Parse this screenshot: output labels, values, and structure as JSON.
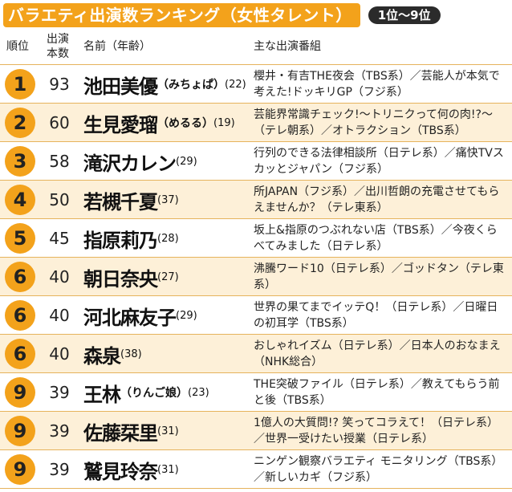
{
  "title": "バラエティ出演数ランキング（女性タレント）",
  "badge": "1位〜9位",
  "headers": {
    "rank": "順位",
    "count_line1": "出演",
    "count_line2": "本数",
    "name": "名前（年齢）",
    "programs": "主な出演番組"
  },
  "rows": [
    {
      "rank": "1",
      "count": "93",
      "name": "池田美優",
      "kana": "（みちょぱ）",
      "age": "(22)",
      "programs": "櫻井・有吉THE夜会（TBS系）／芸能人が本気で考えた!ドッキリGP（フジ系）"
    },
    {
      "rank": "2",
      "count": "60",
      "name": "生見愛瑠",
      "kana": "（めるる）",
      "age": "(19)",
      "programs": "芸能界常識チェック!〜トリニクって何の肉!?〜（テレ朝系）／オトラクション（TBS系）"
    },
    {
      "rank": "3",
      "count": "58",
      "name": "滝沢カレン",
      "kana": "",
      "age": "(29)",
      "programs": "行列のできる法律相談所（日テレ系）／痛快TVスカッとジャパン（フジ系）"
    },
    {
      "rank": "4",
      "count": "50",
      "name": "若槻千夏",
      "kana": "",
      "age": "(37)",
      "programs": "所JAPAN（フジ系）／出川哲朗の充電させてもらえませんか？（テレ東系）"
    },
    {
      "rank": "5",
      "count": "45",
      "name": "指原莉乃",
      "kana": "",
      "age": "(28)",
      "programs": "坂上&指原のつぶれない店（TBS系）／今夜くらべてみました（日テレ系）"
    },
    {
      "rank": "6",
      "count": "40",
      "name": "朝日奈央",
      "kana": "",
      "age": "(27)",
      "programs": "沸騰ワード10（日テレ系）／ゴッドタン（テレ東系）"
    },
    {
      "rank": "6",
      "count": "40",
      "name": "河北麻友子",
      "kana": "",
      "age": "(29)",
      "programs": "世界の果てまでイッテQ！（日テレ系）／日曜日の初耳学（TBS系）"
    },
    {
      "rank": "6",
      "count": "40",
      "name": "森泉",
      "kana": "",
      "age": "(38)",
      "programs": "おしゃれイズム（日テレ系）／日本人のおなまえ（NHK総合）"
    },
    {
      "rank": "9",
      "count": "39",
      "name": "王林",
      "kana": "（りんご娘）",
      "age": "(23)",
      "programs": "THE突破ファイル（日テレ系）／教えてもらう前と後（TBS系）"
    },
    {
      "rank": "9",
      "count": "39",
      "name": "佐藤栞里",
      "kana": "",
      "age": "(31)",
      "programs": "1億人の大質問!? 笑ってコラえて！（日テレ系）／世界一受けたい授業（日テレ系）"
    },
    {
      "rank": "9",
      "count": "39",
      "name": "鷲見玲奈",
      "kana": "",
      "age": "(31)",
      "programs": "ニンゲン観察バラエティ モニタリング（TBS系）／新しいカギ（フジ系）"
    }
  ]
}
